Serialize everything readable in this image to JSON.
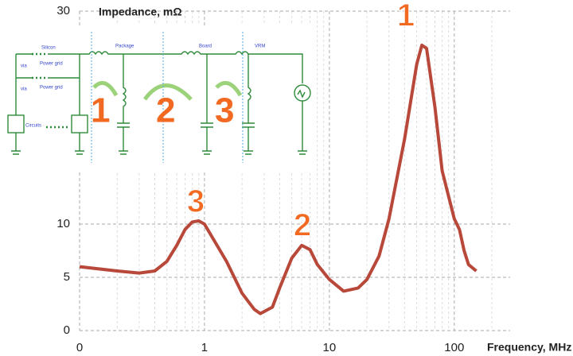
{
  "chart_data": {
    "type": "line",
    "y_label": "Impedance, mΩ",
    "x_label": "Frequency, MHz",
    "x": [
      0.1,
      0.2,
      0.3,
      0.4,
      0.5,
      0.6,
      0.7,
      0.8,
      0.9,
      1,
      1.5,
      2,
      2.5,
      2.8,
      3.5,
      4,
      5,
      6,
      7,
      8,
      10,
      13,
      17,
      20,
      25,
      30,
      40,
      50,
      55,
      60,
      70,
      80,
      100,
      110,
      120,
      130,
      150
    ],
    "values": [
      6.0,
      5.6,
      5.4,
      5.6,
      6.5,
      8.0,
      9.5,
      10.2,
      10.3,
      10.0,
      6.5,
      3.5,
      2.0,
      1.6,
      2.2,
      4.0,
      6.8,
      8.0,
      7.6,
      6.2,
      4.8,
      3.7,
      4.0,
      4.8,
      7.0,
      10.5,
      18,
      25,
      26.8,
      26.5,
      21,
      15,
      10.5,
      9.5,
      7.5,
      6.2,
      5.6
    ],
    "color": "#b8483a",
    "xscale": "log",
    "grid": true,
    "xlim": [
      0.1,
      280
    ],
    "ylim": [
      0,
      30
    ],
    "xticks": [
      {
        "value": 0.1,
        "label": "0"
      },
      1,
      10,
      100
    ],
    "yticks": [
      0,
      5,
      10,
      30
    ],
    "annotations": [
      "1",
      "2",
      "3"
    ]
  },
  "inset": {
    "sections": [
      "Silicon",
      "Package",
      "Board",
      "VRM"
    ],
    "via": [
      "via",
      "via"
    ],
    "power_grid": [
      "Power grid",
      "Power grid"
    ],
    "circuits": "Circuits",
    "loops": [
      "1",
      "2",
      "3"
    ]
  }
}
